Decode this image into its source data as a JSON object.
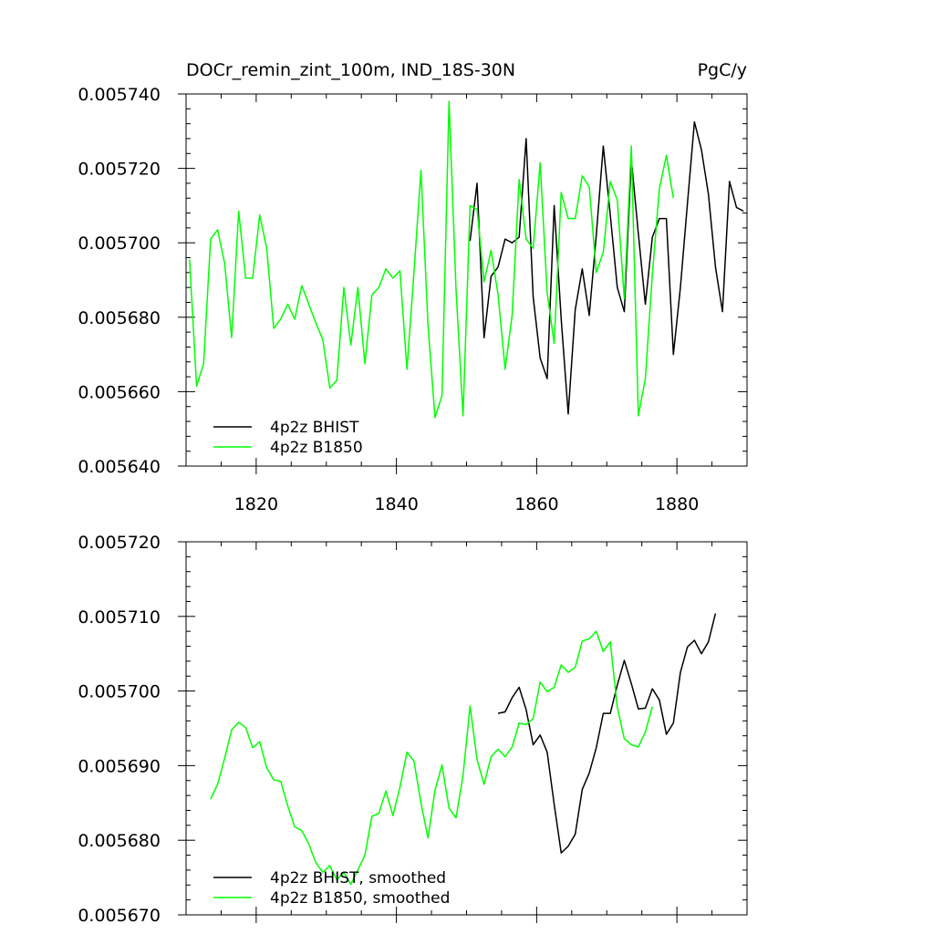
{
  "chart_data": [
    {
      "type": "line",
      "title": "DOCr_remin_zint_100m, IND_18S-30N",
      "units": "PgC/y",
      "xlabel": "",
      "ylabel": "",
      "xlim": [
        1810,
        1890
      ],
      "ylim": [
        0.00564,
        0.00574
      ],
      "x_ticks": [
        1820,
        1840,
        1860,
        1880
      ],
      "x_tick_labels": [
        "1820",
        "1840",
        "1860",
        "1880"
      ],
      "y_ticks": [
        0.00564,
        0.00566,
        0.00568,
        0.0057,
        0.00572,
        0.00574
      ],
      "y_tick_labels": [
        "0.005640",
        "0.005660",
        "0.005680",
        "0.005700",
        "0.005720",
        "0.005740"
      ],
      "grid": false,
      "legend_position": "bottom-left",
      "series": [
        {
          "name": "4p2z BHIST",
          "color": "#000000",
          "x": [
            1850.5,
            1851.5,
            1852.5,
            1853.5,
            1854.5,
            1855.5,
            1856.5,
            1857.5,
            1858.5,
            1859.5,
            1860.5,
            1861.5,
            1862.5,
            1863.5,
            1864.5,
            1865.5,
            1866.5,
            1867.5,
            1868.5,
            1869.5,
            1870.5,
            1871.5,
            1872.5,
            1873.5,
            1874.5,
            1875.5,
            1876.5,
            1877.5,
            1878.5,
            1879.5,
            1880.5,
            1881.5,
            1882.5,
            1883.5,
            1884.5,
            1885.5,
            1886.5,
            1887.5,
            1888.5,
            1889.5
          ],
          "y": [
            0.0057005,
            0.005716,
            0.0056745,
            0.005691,
            0.0056935,
            0.005701,
            0.0057,
            0.0057015,
            0.005728,
            0.0056855,
            0.005669,
            0.0056635,
            0.00571,
            0.0056795,
            0.005654,
            0.005682,
            0.005693,
            0.0056805,
            0.005702,
            0.005726,
            0.0057075,
            0.005688,
            0.0056815,
            0.0057225,
            0.0057025,
            0.0056835,
            0.0057015,
            0.0057065,
            0.0057065,
            0.00567,
            0.005688,
            0.0057105,
            0.0057325,
            0.005725,
            0.005713,
            0.0056935,
            0.0056815,
            0.0057165,
            0.0057095,
            0.0057085
          ]
        },
        {
          "name": "4p2z B1850",
          "color": "#00ff00",
          "x": [
            1810.5,
            1811.5,
            1812.5,
            1813.5,
            1814.5,
            1815.5,
            1816.5,
            1817.5,
            1818.5,
            1819.5,
            1820.5,
            1821.5,
            1822.5,
            1823.5,
            1824.5,
            1825.5,
            1826.5,
            1827.5,
            1828.5,
            1829.5,
            1830.5,
            1831.5,
            1832.5,
            1833.5,
            1834.5,
            1835.5,
            1836.5,
            1837.5,
            1838.5,
            1839.5,
            1840.5,
            1841.5,
            1842.5,
            1843.5,
            1844.5,
            1845.5,
            1846.5,
            1847.5,
            1848.5,
            1849.5,
            1850.5,
            1851.5,
            1852.5,
            1853.5,
            1854.5,
            1855.5,
            1856.5,
            1857.5,
            1858.5,
            1859.5,
            1860.5,
            1861.5,
            1862.5,
            1863.5,
            1864.5,
            1865.5,
            1866.5,
            1867.5,
            1868.5,
            1869.5,
            1870.5,
            1871.5,
            1872.5,
            1873.5,
            1874.5,
            1875.5,
            1876.5,
            1877.5,
            1878.5,
            1879.5
          ],
          "y": [
            0.0056955,
            0.0056615,
            0.0056675,
            0.005701,
            0.0057035,
            0.0056945,
            0.0056745,
            0.0057085,
            0.0056905,
            0.0056905,
            0.0057075,
            0.0056985,
            0.005677,
            0.0056795,
            0.0056835,
            0.0056795,
            0.0056885,
            0.0056835,
            0.0056785,
            0.005674,
            0.005661,
            0.005663,
            0.005688,
            0.0056725,
            0.005688,
            0.0056675,
            0.005686,
            0.005688,
            0.005693,
            0.0056905,
            0.0056925,
            0.005666,
            0.005692,
            0.0057195,
            0.005678,
            0.005653,
            0.005659,
            0.005738,
            0.0056875,
            0.0056535,
            0.00571,
            0.005709,
            0.0056895,
            0.005698,
            0.005686,
            0.005666,
            0.0056805,
            0.005717,
            0.005701,
            0.0056985,
            0.0057215,
            0.0056865,
            0.005673,
            0.0057135,
            0.0057065,
            0.0057065,
            0.005718,
            0.005715,
            0.005692,
            0.0056975,
            0.0057165,
            0.0057115,
            0.005685,
            0.005726,
            0.0056535,
            0.0056635,
            0.0056915,
            0.0057145,
            0.0057235,
            0.005712
          ]
        }
      ]
    },
    {
      "type": "line",
      "title": "",
      "xlabel": "",
      "ylabel": "",
      "xlim": [
        1810,
        1890
      ],
      "ylim": [
        0.00567,
        0.00572
      ],
      "x_ticks": [
        1820,
        1840,
        1860,
        1880
      ],
      "x_tick_labels": [],
      "y_ticks": [
        0.00567,
        0.00568,
        0.00569,
        0.0057,
        0.00571,
        0.00572
      ],
      "y_tick_labels": [
        "0.005670",
        "0.005680",
        "0.005690",
        "0.005700",
        "0.005710",
        "0.005720"
      ],
      "grid": false,
      "legend_position": "bottom-left",
      "series": [
        {
          "name": "4p2z BHIST, smoothed",
          "color": "#000000",
          "x": [
            1854.5,
            1855.5,
            1856.5,
            1857.5,
            1858.5,
            1859.5,
            1860.5,
            1861.5,
            1862.5,
            1863.5,
            1864.5,
            1865.5,
            1866.5,
            1867.5,
            1868.5,
            1869.5,
            1870.5,
            1871.5,
            1872.5,
            1873.5,
            1874.5,
            1875.5,
            1876.5,
            1877.5,
            1878.5,
            1879.5,
            1880.5,
            1881.5,
            1882.5,
            1883.5,
            1884.5,
            1885.5
          ],
          "y": [
            0.005697,
            0.0056972,
            0.0056991,
            0.0057005,
            0.0056975,
            0.0056928,
            0.0056941,
            0.0056918,
            0.0056848,
            0.0056783,
            0.0056792,
            0.0056808,
            0.0056868,
            0.005689,
            0.0056924,
            0.005697,
            0.005697,
            0.0057008,
            0.0057041,
            0.005701,
            0.0056976,
            0.0056977,
            0.0057003,
            0.0056988,
            0.0056942,
            0.0056957,
            0.0057025,
            0.0057059,
            0.0057068,
            0.005705,
            0.0057066,
            0.0057104
          ]
        },
        {
          "name": "4p2z B1850, smoothed",
          "color": "#00ff00",
          "x": [
            1813.5,
            1814.5,
            1815.5,
            1816.5,
            1817.5,
            1818.5,
            1819.5,
            1820.5,
            1821.5,
            1822.5,
            1823.5,
            1824.5,
            1825.5,
            1826.5,
            1827.5,
            1828.5,
            1829.5,
            1830.5,
            1831.5,
            1832.5,
            1833.5,
            1834.5,
            1835.5,
            1836.5,
            1837.5,
            1838.5,
            1839.5,
            1840.5,
            1841.5,
            1842.5,
            1843.5,
            1844.5,
            1845.5,
            1846.5,
            1847.5,
            1848.5,
            1849.5,
            1850.5,
            1851.5,
            1852.5,
            1853.5,
            1854.5,
            1855.5,
            1856.5,
            1857.5,
            1858.5,
            1859.5,
            1860.5,
            1861.5,
            1862.5,
            1863.5,
            1864.5,
            1865.5,
            1866.5,
            1867.5,
            1868.5,
            1869.5,
            1870.5,
            1871.5,
            1872.5,
            1873.5,
            1874.5,
            1875.5,
            1876.5
          ],
          "y": [
            0.0056855,
            0.0056875,
            0.005691,
            0.0056948,
            0.0056958,
            0.0056951,
            0.0056924,
            0.0056932,
            0.0056897,
            0.0056881,
            0.0056879,
            0.0056846,
            0.0056818,
            0.0056813,
            0.0056795,
            0.005677,
            0.0056757,
            0.0056766,
            0.0056747,
            0.0056757,
            0.0056741,
            0.005676,
            0.005678,
            0.0056832,
            0.0056836,
            0.0056866,
            0.0056833,
            0.0056871,
            0.0056918,
            0.0056906,
            0.005685,
            0.0056803,
            0.0056867,
            0.0056901,
            0.0056843,
            0.005683,
            0.0056887,
            0.005698,
            0.0056908,
            0.0056875,
            0.0056912,
            0.0056922,
            0.0056912,
            0.0056925,
            0.0056957,
            0.0056955,
            0.0056963,
            0.0057012,
            0.0056999,
            0.0057005,
            0.0057035,
            0.0057025,
            0.0057032,
            0.0057067,
            0.005707,
            0.005708,
            0.0057053,
            0.0057066,
            0.0056978,
            0.0056936,
            0.0056928,
            0.0056925,
            0.0056945,
            0.0056979
          ]
        }
      ]
    }
  ]
}
